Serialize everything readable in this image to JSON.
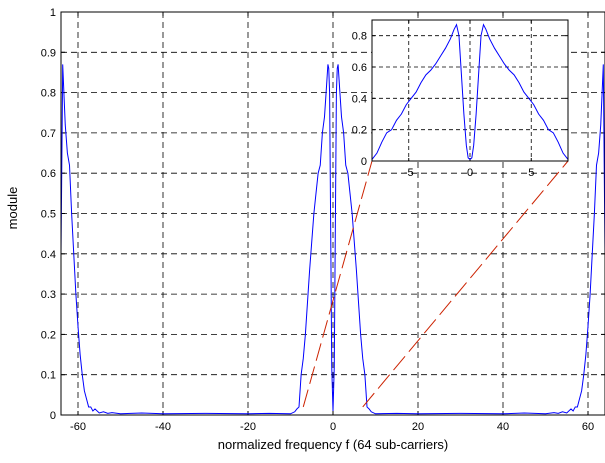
{
  "chart_data": [
    {
      "id": "main",
      "type": "line",
      "title": "",
      "xlabel": "normalized frequency f (64 sub-carriers)",
      "ylabel": "module",
      "xlim": [
        -64,
        64
      ],
      "ylim": [
        0,
        1
      ],
      "xticks": [
        -60,
        -40,
        -20,
        0,
        20,
        40,
        60
      ],
      "xtick_labels": [
        "-60",
        "-40",
        "-20",
        "0",
        "20",
        "40",
        "60"
      ],
      "yticks": [
        0,
        0.1,
        0.2,
        0.3,
        0.4,
        0.5,
        0.6,
        0.7,
        0.8,
        0.9,
        1
      ],
      "ytick_labels": [
        "0",
        "0.1",
        "0.2",
        "0.3",
        "0.4",
        "0.5",
        "0.6",
        "0.7",
        "0.8",
        "0.9",
        "1"
      ],
      "grid": true,
      "line_color": "#0000ff",
      "series": [
        {
          "x": [
            -64,
            -63.6,
            -63,
            -62.5,
            -62,
            -61.5,
            -61,
            -60.5,
            -60,
            -59.5,
            -59,
            -58.5,
            -58,
            -57.5,
            -57,
            -56.5,
            -56,
            -55,
            -54,
            -53,
            -52,
            -50,
            -45,
            -40,
            -30,
            -20,
            -15,
            -10,
            -9,
            -8.5,
            -8,
            -7.5,
            -7,
            -6.5,
            -6,
            -5.5,
            -5,
            -4.5,
            -4,
            -3.5,
            -3,
            -2.5,
            -2,
            -1.5,
            -1.2,
            -1,
            -0.8,
            -0.5,
            -0.3,
            0,
            0.3,
            0.5,
            0.8,
            1,
            1.2,
            1.5,
            2,
            2.5,
            3,
            3.5,
            4,
            4.5,
            5,
            5.5,
            6,
            6.5,
            7,
            7.5,
            8,
            8.5,
            9,
            10,
            15,
            20,
            30,
            40,
            45,
            50,
            52,
            53,
            54,
            55,
            56,
            56.5,
            57,
            57.5,
            58,
            58.5,
            59,
            59.5,
            60,
            60.5,
            61,
            61.5,
            62,
            62.5,
            63,
            63.6,
            64
          ],
          "y": [
            0.4,
            0.87,
            0.72,
            0.65,
            0.62,
            0.5,
            0.4,
            0.3,
            0.22,
            0.15,
            0.1,
            0.06,
            0.04,
            0.02,
            0.02,
            0.01,
            0.015,
            0.005,
            0.008,
            0.004,
            0.006,
            0.003,
            0.005,
            0.003,
            0.004,
            0.003,
            0.004,
            0.003,
            0.008,
            0.015,
            0.02,
            0.1,
            0.14,
            0.2,
            0.28,
            0.36,
            0.43,
            0.5,
            0.55,
            0.6,
            0.62,
            0.7,
            0.74,
            0.82,
            0.87,
            0.86,
            0.8,
            0.4,
            0.12,
            0.01,
            0.12,
            0.4,
            0.8,
            0.86,
            0.87,
            0.82,
            0.74,
            0.7,
            0.62,
            0.6,
            0.55,
            0.5,
            0.43,
            0.36,
            0.28,
            0.2,
            0.14,
            0.1,
            0.02,
            0.015,
            0.008,
            0.003,
            0.004,
            0.003,
            0.004,
            0.003,
            0.005,
            0.003,
            0.006,
            0.004,
            0.008,
            0.005,
            0.015,
            0.01,
            0.02,
            0.02,
            0.04,
            0.06,
            0.1,
            0.15,
            0.22,
            0.3,
            0.4,
            0.5,
            0.62,
            0.65,
            0.72,
            0.87,
            0.4
          ]
        }
      ]
    },
    {
      "id": "inset",
      "type": "line",
      "title": "",
      "xlabel": "",
      "ylabel": "",
      "xlim": [
        -8,
        8
      ],
      "ylim": [
        0,
        0.9
      ],
      "xticks": [
        -5,
        0,
        5
      ],
      "xtick_labels": [
        "-5",
        "0",
        "5"
      ],
      "yticks": [
        0,
        0.2,
        0.4,
        0.6,
        0.8
      ],
      "ytick_labels": [
        "0",
        "0.2",
        "0.4",
        "0.6",
        "0.8"
      ],
      "grid": true,
      "line_color": "#0000ff",
      "series": [
        {
          "x": [
            -8,
            -7.6,
            -7.2,
            -6.8,
            -6.4,
            -6,
            -5.6,
            -5.2,
            -4.8,
            -4.4,
            -4,
            -3.6,
            -3.2,
            -2.8,
            -2.4,
            -2,
            -1.6,
            -1.3,
            -1.1,
            -0.9,
            -0.7,
            -0.5,
            -0.3,
            -0.15,
            0,
            0.15,
            0.3,
            0.5,
            0.7,
            0.9,
            1.1,
            1.3,
            1.6,
            2,
            2.4,
            2.8,
            3.2,
            3.6,
            4,
            4.4,
            4.8,
            5.2,
            5.6,
            6,
            6.4,
            6.8,
            7.2,
            7.6,
            8
          ],
          "y": [
            0.01,
            0.05,
            0.12,
            0.18,
            0.2,
            0.26,
            0.3,
            0.36,
            0.4,
            0.44,
            0.5,
            0.55,
            0.58,
            0.62,
            0.67,
            0.72,
            0.78,
            0.84,
            0.87,
            0.8,
            0.55,
            0.3,
            0.1,
            0.02,
            0.01,
            0.02,
            0.1,
            0.3,
            0.55,
            0.8,
            0.87,
            0.84,
            0.78,
            0.72,
            0.67,
            0.62,
            0.58,
            0.55,
            0.5,
            0.44,
            0.4,
            0.36,
            0.3,
            0.26,
            0.2,
            0.18,
            0.12,
            0.05,
            0.01
          ]
        }
      ]
    }
  ],
  "zoom_lines": {
    "color": "#cc2200",
    "segments": [
      {
        "from": {
          "x": -7,
          "y": 0.02
        },
        "to": {
          "x": -8,
          "y": 0
        }
      },
      {
        "from": {
          "x": 7,
          "y": 0.02
        },
        "to": {
          "x": 8,
          "y": 0
        }
      }
    ]
  }
}
